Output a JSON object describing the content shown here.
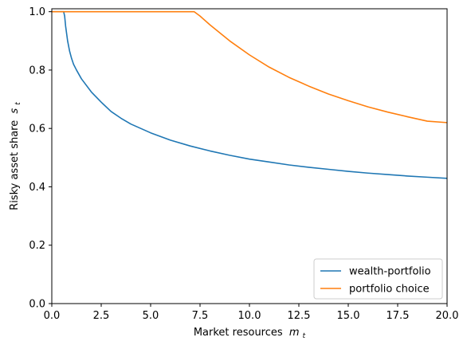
{
  "chart_data": {
    "type": "line",
    "xlabel": "Market resources",
    "xlabel_var": "m",
    "xlabel_sub": "t",
    "ylabel": "Risky asset share",
    "ylabel_var": "s",
    "ylabel_sub": "t",
    "xlim": [
      0,
      20
    ],
    "ylim": [
      0,
      1.01
    ],
    "xticks": [
      "0.0",
      "2.5",
      "5.0",
      "7.5",
      "10.0",
      "12.5",
      "15.0",
      "17.5",
      "20.0"
    ],
    "xtick_values": [
      0,
      2.5,
      5,
      7.5,
      10,
      12.5,
      15,
      17.5,
      20
    ],
    "yticks": [
      "0.0",
      "0.2",
      "0.4",
      "0.6",
      "0.8",
      "1.0"
    ],
    "ytick_values": [
      0,
      0.2,
      0.4,
      0.6,
      0.8,
      1.0
    ],
    "grid": false,
    "legend_position": "lower-right",
    "series": [
      {
        "name": "wealth-portfolio",
        "color": "#1f77b4",
        "x": [
          0.0,
          0.3,
          0.6,
          0.65,
          0.7,
          0.8,
          0.9,
          1.0,
          1.1,
          1.25,
          1.5,
          2.0,
          2.5,
          3.0,
          3.5,
          4.0,
          5.0,
          6.0,
          7.0,
          8.0,
          9.0,
          10.0,
          11.0,
          12.0,
          13.0,
          14.0,
          15.0,
          16.0,
          17.0,
          18.0,
          19.0,
          20.0
        ],
        "y": [
          1.0,
          1.0,
          1.0,
          0.985,
          0.95,
          0.9,
          0.865,
          0.84,
          0.82,
          0.8,
          0.77,
          0.725,
          0.69,
          0.658,
          0.635,
          0.615,
          0.585,
          0.56,
          0.54,
          0.523,
          0.508,
          0.495,
          0.485,
          0.475,
          0.467,
          0.46,
          0.453,
          0.447,
          0.442,
          0.437,
          0.433,
          0.429
        ]
      },
      {
        "name": "portfolio choice",
        "color": "#ff7f0e",
        "x": [
          0.0,
          1.0,
          3.0,
          5.0,
          7.2,
          7.5,
          8.0,
          9.0,
          10.0,
          11.0,
          12.0,
          13.0,
          14.0,
          15.0,
          16.0,
          17.0,
          18.0,
          19.0,
          20.0
        ],
        "y": [
          1.0,
          1.0,
          1.0,
          1.0,
          1.0,
          0.985,
          0.955,
          0.9,
          0.852,
          0.81,
          0.775,
          0.745,
          0.718,
          0.695,
          0.674,
          0.656,
          0.64,
          0.625,
          0.62
        ]
      }
    ]
  }
}
